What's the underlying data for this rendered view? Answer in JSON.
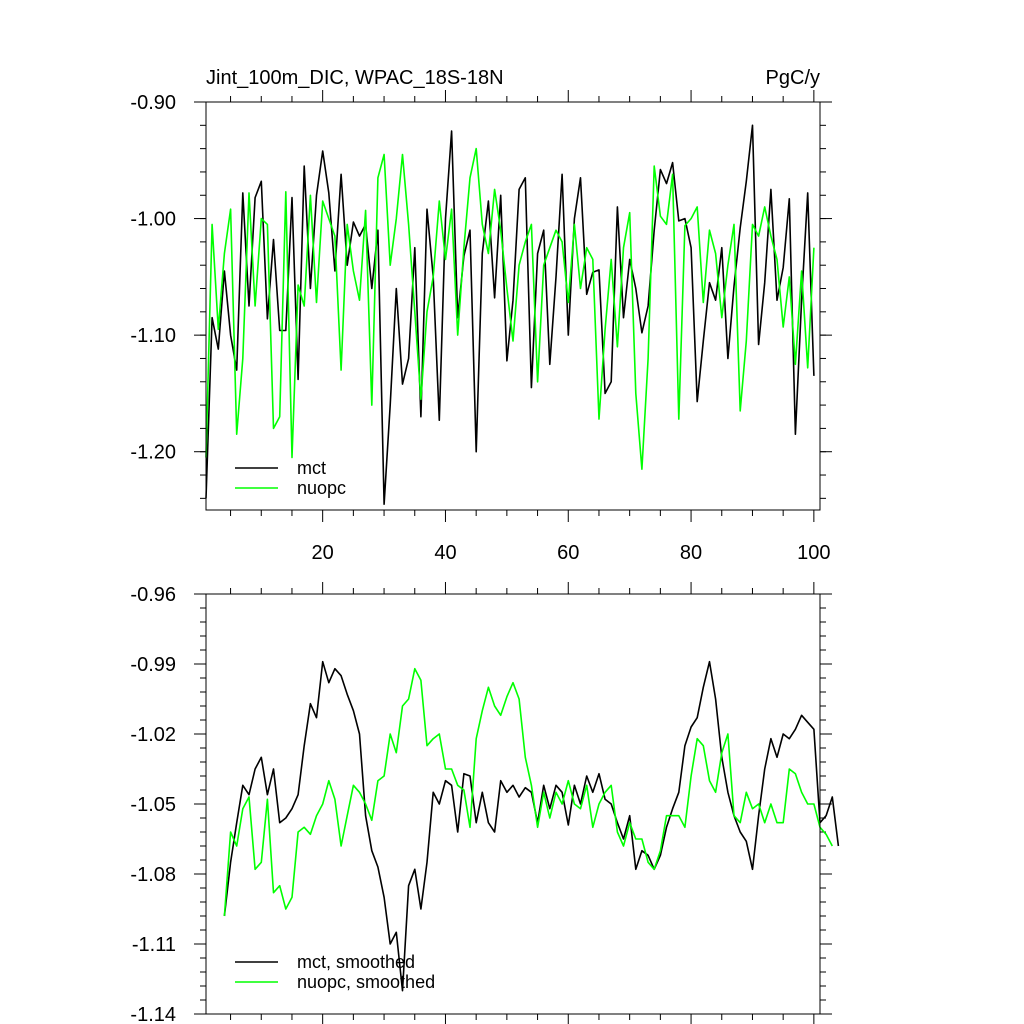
{
  "chart_data": [
    {
      "type": "line",
      "title": "Jint_100m_DIC, WPAC_18S-18N",
      "units": "PgC/y",
      "xlabel": "",
      "ylabel": "",
      "xlim": [
        1,
        101
      ],
      "ylim": [
        -1.25,
        -0.9
      ],
      "x_ticks": [
        20,
        40,
        60,
        80,
        100
      ],
      "x_tick_labels": [
        "20",
        "40",
        "60",
        "80",
        "100"
      ],
      "y_ticks": [
        -0.9,
        -1.0,
        -1.1,
        -1.2
      ],
      "y_tick_labels": [
        "-0.90",
        "-1.00",
        "-1.10",
        "-1.20"
      ],
      "legend_position": "bottom-left",
      "grid": false,
      "x_start": 1,
      "series": [
        {
          "name": "mct",
          "color": "#000000",
          "values": [
            -1.24,
            -1.085,
            -1.112,
            -1.045,
            -1.1,
            -1.13,
            -0.978,
            -1.075,
            -0.982,
            -0.968,
            -1.086,
            -1.018,
            -1.096,
            -1.096,
            -0.982,
            -1.138,
            -0.955,
            -1.06,
            -0.98,
            -0.942,
            -0.978,
            -1.045,
            -0.962,
            -1.04,
            -1.003,
            -1.015,
            -1.005,
            -1.06,
            -1.01,
            -1.245,
            -1.16,
            -1.06,
            -1.142,
            -1.12,
            -1.025,
            -1.17,
            -0.992,
            -1.05,
            -1.173,
            -1.0,
            -0.925,
            -1.085,
            -1.032,
            -1.01,
            -1.2,
            -1.03,
            -0.985,
            -1.068,
            -0.98,
            -1.122,
            -1.07,
            -0.975,
            -0.965,
            -1.145,
            -1.03,
            -1.01,
            -1.125,
            -1.05,
            -0.962,
            -1.1,
            -1.0,
            -0.965,
            -1.065,
            -1.046,
            -1.044,
            -1.15,
            -1.14,
            -0.99,
            -1.085,
            -1.035,
            -1.06,
            -1.098,
            -1.075,
            -1.01,
            -0.958,
            -0.97,
            -0.952,
            -1.002,
            -1.0,
            -1.025,
            -1.157,
            -1.105,
            -1.055,
            -1.07,
            -1.025,
            -1.12,
            -1.058,
            -1.008,
            -0.968,
            -0.92,
            -1.108,
            -1.055,
            -0.975,
            -1.07,
            -1.042,
            -0.983,
            -1.185,
            -1.07,
            -0.978,
            -1.135
          ]
        },
        {
          "name": "nuopc",
          "color": "#00ff00",
          "values": [
            -1.205,
            -1.005,
            -1.095,
            -1.03,
            -0.992,
            -1.185,
            -1.12,
            -0.978,
            -1.075,
            -1.0,
            -1.005,
            -1.18,
            -1.17,
            -0.977,
            -1.205,
            -1.057,
            -1.075,
            -0.98,
            -1.072,
            -0.985,
            -1.0,
            -1.015,
            -1.13,
            -1.005,
            -1.045,
            -1.07,
            -0.993,
            -1.16,
            -0.965,
            -0.945,
            -1.04,
            -1.0,
            -0.945,
            -1.005,
            -1.08,
            -1.155,
            -1.08,
            -1.05,
            -0.985,
            -1.035,
            -0.992,
            -1.1,
            -1.025,
            -0.965,
            -0.94,
            -1.005,
            -1.03,
            -0.975,
            -1.01,
            -1.06,
            -1.105,
            -1.04,
            -1.02,
            -1.005,
            -1.14,
            -1.04,
            -1.025,
            -1.01,
            -1.02,
            -1.072,
            -1.005,
            -1.06,
            -1.025,
            -1.035,
            -1.172,
            -1.095,
            -1.035,
            -1.11,
            -1.025,
            -0.995,
            -1.15,
            -1.215,
            -1.12,
            -0.955,
            -0.998,
            -1.005,
            -0.962,
            -1.172,
            -1.006,
            -1.0,
            -0.99,
            -1.072,
            -1.01,
            -1.03,
            -1.085,
            -1.04,
            -1.005,
            -1.165,
            -1.105,
            -1.005,
            -1.015,
            -0.99,
            -1.015,
            -1.035,
            -1.093,
            -1.05,
            -1.125,
            -1.045,
            -1.128,
            -1.025
          ]
        }
      ]
    },
    {
      "type": "line",
      "title": "",
      "xlabel": "",
      "ylabel": "",
      "xlim": [
        1,
        101
      ],
      "ylim": [
        -1.14,
        -0.96
      ],
      "x_ticks": [
        20,
        40,
        60,
        80,
        100
      ],
      "y_ticks": [
        -0.96,
        -0.99,
        -1.02,
        -1.05,
        -1.08,
        -1.11,
        -1.14
      ],
      "y_tick_labels": [
        "-0.96",
        "-0.99",
        "-1.02",
        "-1.05",
        "-1.08",
        "-1.11",
        "-1.14"
      ],
      "legend_position": "bottom-left",
      "grid": false,
      "x_start": 4,
      "series": [
        {
          "name": "mct, smoothed",
          "color": "#000000",
          "values": [
            -1.098,
            -1.075,
            -1.058,
            -1.042,
            -1.046,
            -1.035,
            -1.03,
            -1.046,
            -1.035,
            -1.058,
            -1.056,
            -1.052,
            -1.046,
            -1.025,
            -1.007,
            -1.013,
            -0.989,
            -0.998,
            -0.992,
            -0.995,
            -1.003,
            -1.01,
            -1.02,
            -1.055,
            -1.07,
            -1.077,
            -1.09,
            -1.11,
            -1.105,
            -1.13,
            -1.085,
            -1.078,
            -1.095,
            -1.075,
            -1.045,
            -1.05,
            -1.04,
            -1.042,
            -1.062,
            -1.037,
            -1.038,
            -1.058,
            -1.045,
            -1.058,
            -1.062,
            -1.04,
            -1.045,
            -1.042,
            -1.047,
            -1.043,
            -1.045,
            -1.058,
            -1.042,
            -1.052,
            -1.042,
            -1.045,
            -1.059,
            -1.042,
            -1.05,
            -1.038,
            -1.045,
            -1.037,
            -1.048,
            -1.05,
            -1.058,
            -1.065,
            -1.055,
            -1.078,
            -1.07,
            -1.072,
            -1.078,
            -1.072,
            -1.06,
            -1.052,
            -1.045,
            -1.025,
            -1.017,
            -1.013,
            -1.0,
            -0.989,
            -1.005,
            -1.03,
            -1.045,
            -1.055,
            -1.062,
            -1.066,
            -1.078,
            -1.055,
            -1.035,
            -1.022,
            -1.03,
            -1.02,
            -1.022,
            -1.018,
            -1.012,
            -1.015,
            -1.018,
            -1.058,
            -1.055,
            -1.047,
            -1.068
          ]
        },
        {
          "name": "nuopc, smoothed",
          "color": "#00ff00",
          "values": [
            -1.098,
            -1.062,
            -1.068,
            -1.052,
            -1.047,
            -1.078,
            -1.075,
            -1.048,
            -1.088,
            -1.085,
            -1.095,
            -1.09,
            -1.062,
            -1.06,
            -1.063,
            -1.055,
            -1.05,
            -1.04,
            -1.048,
            -1.068,
            -1.055,
            -1.042,
            -1.045,
            -1.05,
            -1.057,
            -1.04,
            -1.038,
            -1.02,
            -1.028,
            -1.008,
            -1.005,
            -0.992,
            -0.997,
            -1.025,
            -1.022,
            -1.02,
            -1.035,
            -1.035,
            -1.042,
            -1.044,
            -1.06,
            -1.022,
            -1.01,
            -1.0,
            -1.008,
            -1.012,
            -1.004,
            -0.998,
            -1.005,
            -1.03,
            -1.042,
            -1.06,
            -1.045,
            -1.056,
            -1.045,
            -1.05,
            -1.04,
            -1.05,
            -1.052,
            -1.042,
            -1.06,
            -1.05,
            -1.045,
            -1.042,
            -1.062,
            -1.068,
            -1.058,
            -1.065,
            -1.065,
            -1.075,
            -1.078,
            -1.07,
            -1.055,
            -1.055,
            -1.055,
            -1.06,
            -1.038,
            -1.022,
            -1.025,
            -1.04,
            -1.045,
            -1.028,
            -1.02,
            -1.055,
            -1.058,
            -1.045,
            -1.052,
            -1.05,
            -1.058,
            -1.05,
            -1.058,
            -1.058,
            -1.035,
            -1.037,
            -1.045,
            -1.05,
            -1.05,
            -1.06,
            -1.063,
            -1.068
          ]
        }
      ]
    }
  ]
}
